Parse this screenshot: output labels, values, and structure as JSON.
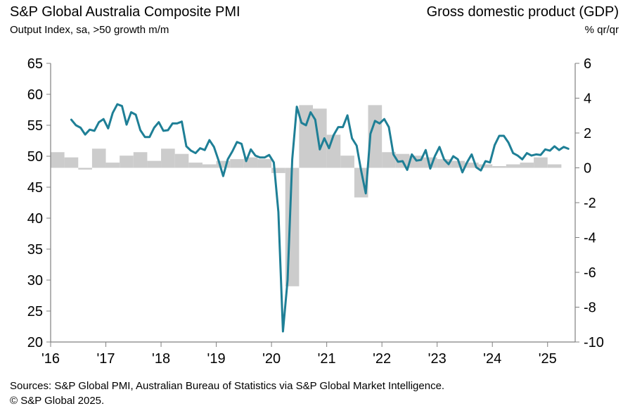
{
  "header": {
    "left_title": "S&P Global Australia Composite PMI",
    "left_subtitle": "Output Index, sa, >50 growth m/m",
    "right_title": "Gross domestic product (GDP)",
    "right_subtitle": "% qr/qr"
  },
  "footer": {
    "sources": "Sources: S&P Global PMI, Australian Bureau of Statistics via S&P Global Market Intelligence.",
    "copyright": "© S&P Global 2025."
  },
  "colors": {
    "pmi_line": "#1e7f96",
    "gdp_bars": "#cccccc",
    "axis": "#808080"
  },
  "chart_data": {
    "type": "line",
    "left_axis": {
      "label": "Output Index, sa, >50 growth m/m",
      "ylim": [
        20,
        65
      ],
      "ticks": [
        "65",
        "60",
        "55",
        "50",
        "45",
        "40",
        "35",
        "30",
        "25",
        "20"
      ]
    },
    "right_axis": {
      "label": "% qr/qr",
      "ylim": [
        -10,
        6
      ],
      "ticks": [
        "6",
        "4",
        "2",
        "0",
        "-2",
        "-4",
        "-6",
        "-8",
        "-10"
      ]
    },
    "x_axis": {
      "range": [
        2016.0,
        2025.5
      ],
      "tick_labels": [
        "'16",
        "'17",
        "'18",
        "'19",
        "'20",
        "'21",
        "'22",
        "'23",
        "'24",
        "'25"
      ]
    },
    "grid": false,
    "series": [
      {
        "name": "S&P Global Australia Composite PMI",
        "kind": "line",
        "axis": "left",
        "x": [
          2016.375,
          2016.458,
          2016.542,
          2016.625,
          2016.708,
          2016.792,
          2016.875,
          2016.958,
          2017.042,
          2017.125,
          2017.208,
          2017.292,
          2017.375,
          2017.458,
          2017.542,
          2017.625,
          2017.708,
          2017.792,
          2017.875,
          2017.958,
          2018.042,
          2018.125,
          2018.208,
          2018.292,
          2018.375,
          2018.458,
          2018.542,
          2018.625,
          2018.708,
          2018.792,
          2018.875,
          2018.958,
          2019.042,
          2019.125,
          2019.208,
          2019.292,
          2019.375,
          2019.458,
          2019.542,
          2019.625,
          2019.708,
          2019.792,
          2019.875,
          2019.958,
          2020.042,
          2020.125,
          2020.208,
          2020.292,
          2020.375,
          2020.458,
          2020.542,
          2020.625,
          2020.708,
          2020.792,
          2020.875,
          2020.958,
          2021.042,
          2021.125,
          2021.208,
          2021.292,
          2021.375,
          2021.458,
          2021.542,
          2021.625,
          2021.708,
          2021.792,
          2021.875,
          2021.958,
          2022.042,
          2022.125,
          2022.208,
          2022.292,
          2022.375,
          2022.458,
          2022.542,
          2022.625,
          2022.708,
          2022.792,
          2022.875,
          2022.958,
          2023.042,
          2023.125,
          2023.208,
          2023.292,
          2023.375,
          2023.458,
          2023.542,
          2023.625,
          2023.708,
          2023.792,
          2023.875,
          2023.958,
          2024.042,
          2024.125,
          2024.208,
          2024.292,
          2024.375,
          2024.458,
          2024.542,
          2024.625,
          2024.708,
          2024.792,
          2024.875,
          2024.958,
          2025.042,
          2025.125,
          2025.208,
          2025.292,
          2025.375
        ],
        "y": [
          55.9,
          55.0,
          54.6,
          53.5,
          54.3,
          54.1,
          55.5,
          56.0,
          54.5,
          57.0,
          58.4,
          58.1,
          55.1,
          57.1,
          56.7,
          54.2,
          53.1,
          53.1,
          54.6,
          55.5,
          54.1,
          54.2,
          55.3,
          55.3,
          55.6,
          51.6,
          50.9,
          50.5,
          51.3,
          51.0,
          52.6,
          51.5,
          49.3,
          46.8,
          49.5,
          50.8,
          52.3,
          52.0,
          49.2,
          51.1,
          50.1,
          49.8,
          49.8,
          50.2,
          49.0,
          41.0,
          21.7,
          30.0,
          49.5,
          58.0,
          55.4,
          55.0,
          57.1,
          55.9,
          51.1,
          52.9,
          51.3,
          53.4,
          54.7,
          54.7,
          56.6,
          52.9,
          51.7,
          47.6,
          44.0,
          53.6,
          55.7,
          55.3,
          56.0,
          54.7,
          50.3,
          49.1,
          49.2,
          47.8,
          50.3,
          49.3,
          49.4,
          51.0,
          48.0,
          50.0,
          51.5,
          49.5,
          48.7,
          50.0,
          49.5,
          47.4,
          49.0,
          50.3,
          48.2,
          47.7,
          49.2,
          49.0,
          51.8,
          53.3,
          53.3,
          52.2,
          50.5,
          50.1,
          49.5,
          50.5,
          50.1,
          50.3,
          50.2,
          51.1,
          50.9,
          51.6,
          51.0,
          51.5,
          51.2
        ],
        "y_note": "intentionally overridden below"
      },
      {
        "name": "Gross domestic product (GDP)",
        "kind": "bar",
        "axis": "right",
        "quarters": [
          "2016Q1",
          "2016Q2",
          "2016Q3",
          "2016Q4",
          "2017Q1",
          "2017Q2",
          "2017Q3",
          "2017Q4",
          "2018Q1",
          "2018Q2",
          "2018Q3",
          "2018Q4",
          "2019Q1",
          "2019Q2",
          "2019Q3",
          "2019Q4",
          "2020Q1",
          "2020Q2",
          "2020Q3",
          "2020Q4",
          "2021Q1",
          "2021Q2",
          "2021Q3",
          "2021Q4",
          "2022Q1",
          "2022Q2",
          "2022Q3",
          "2022Q4",
          "2023Q1",
          "2023Q2",
          "2023Q3",
          "2023Q4",
          "2024Q1",
          "2024Q2",
          "2024Q3",
          "2024Q4",
          "2025Q1"
        ],
        "values": [
          0.9,
          0.6,
          -0.1,
          1.1,
          0.3,
          0.7,
          0.9,
          0.4,
          1.1,
          0.8,
          0.3,
          0.2,
          0.4,
          0.5,
          0.6,
          0.5,
          -0.3,
          -6.8,
          3.6,
          3.4,
          1.9,
          0.7,
          -1.7,
          3.6,
          0.9,
          0.8,
          0.7,
          0.6,
          0.5,
          0.4,
          0.3,
          0.2,
          0.1,
          0.2,
          0.3,
          0.6,
          0.2
        ]
      }
    ]
  }
}
